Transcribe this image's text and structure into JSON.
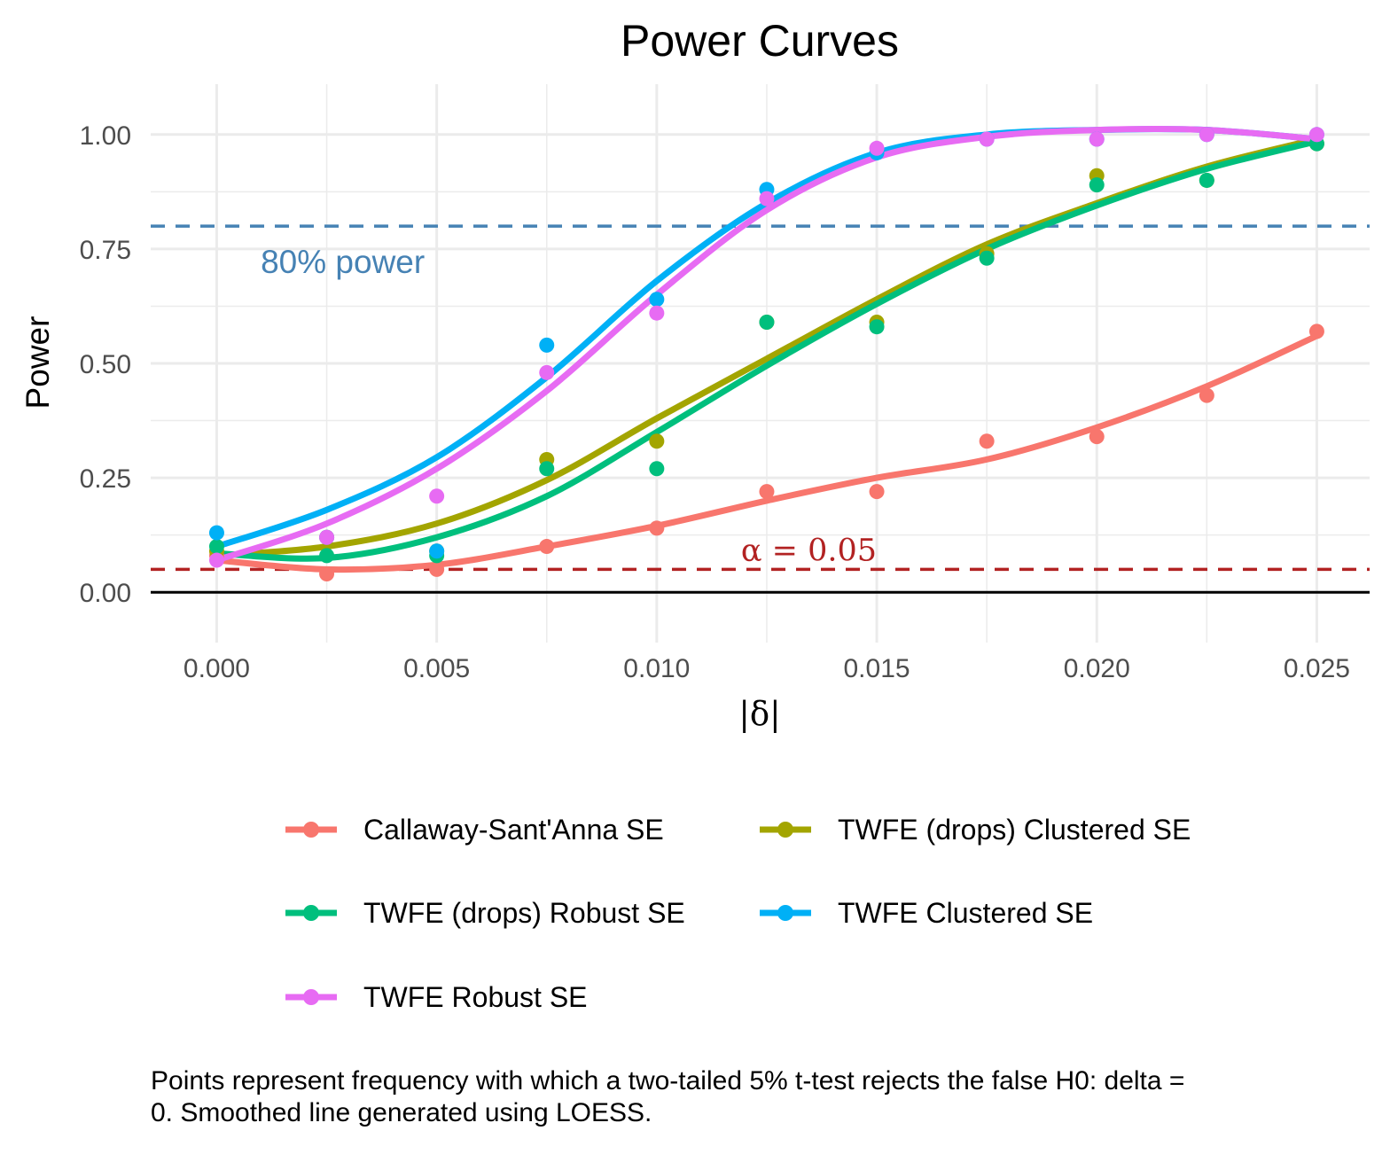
{
  "chart_data": {
    "type": "line",
    "title": "Power Curves",
    "xlabel": "|δ|",
    "ylabel": "Power",
    "xlim": [
      -0.0015,
      0.0262
    ],
    "ylim": [
      -0.11,
      1.11
    ],
    "x_ticks": [
      0.0,
      0.005,
      0.01,
      0.015,
      0.02,
      0.025
    ],
    "x_tick_labels": [
      "0.000",
      "0.005",
      "0.010",
      "0.015",
      "0.020",
      "0.025"
    ],
    "y_ticks": [
      0.0,
      0.25,
      0.5,
      0.75,
      1.0
    ],
    "y_tick_labels": [
      "0.00",
      "0.25",
      "0.50",
      "0.75",
      "1.00"
    ],
    "grid": true,
    "legend_position": "bottom",
    "x": [
      0,
      0.0025,
      0.005,
      0.0075,
      0.01,
      0.0125,
      0.015,
      0.0175,
      0.02,
      0.0225,
      0.025
    ],
    "series": [
      {
        "name": "Callaway-Sant'Anna SE",
        "color": "#F8766D",
        "points": [
          0.08,
          0.04,
          0.05,
          0.1,
          0.14,
          0.22,
          0.22,
          0.33,
          0.34,
          0.43,
          0.57
        ],
        "smooth": [
          0.07,
          0.05,
          0.06,
          0.1,
          0.145,
          0.2,
          0.25,
          0.29,
          0.36,
          0.45,
          0.56
        ]
      },
      {
        "name": "TWFE (drops) Clustered SE",
        "color": "#A3A500",
        "points": [
          0.09,
          0.12,
          0.09,
          0.29,
          0.33,
          0.59,
          0.59,
          0.74,
          0.91,
          0.9,
          0.98
        ],
        "smooth": [
          0.08,
          0.1,
          0.15,
          0.245,
          0.38,
          0.51,
          0.64,
          0.76,
          0.85,
          0.93,
          0.99
        ]
      },
      {
        "name": "TWFE (drops) Robust SE",
        "color": "#00BF7D",
        "points": [
          0.1,
          0.08,
          0.08,
          0.27,
          0.27,
          0.59,
          0.58,
          0.73,
          0.89,
          0.9,
          0.98
        ],
        "smooth": [
          0.085,
          0.075,
          0.12,
          0.21,
          0.35,
          0.495,
          0.63,
          0.75,
          0.845,
          0.925,
          0.985
        ]
      },
      {
        "name": "TWFE Clustered SE",
        "color": "#00B0F6",
        "points": [
          0.13,
          0.12,
          0.09,
          0.54,
          0.64,
          0.88,
          0.96,
          0.99,
          0.99,
          1.0,
          1.0
        ],
        "smooth": [
          0.1,
          0.18,
          0.295,
          0.47,
          0.68,
          0.85,
          0.96,
          1.0,
          1.01,
          1.01,
          0.99
        ]
      },
      {
        "name": "TWFE Robust SE",
        "color": "#E76BF3",
        "points": [
          0.07,
          0.12,
          0.21,
          0.48,
          0.61,
          0.86,
          0.97,
          0.99,
          0.99,
          1.0,
          1.0
        ],
        "smooth": [
          0.07,
          0.15,
          0.27,
          0.44,
          0.65,
          0.835,
          0.95,
          0.995,
          1.01,
          1.01,
          0.99
        ]
      }
    ],
    "reference_lines": [
      {
        "y": 0.8,
        "color": "#4682B4",
        "style": "dashed",
        "label": "80% power"
      },
      {
        "y": 0.05,
        "color": "#B22222",
        "style": "dashed",
        "label": "α = 0.05"
      },
      {
        "y": 0.0,
        "color": "#000000",
        "style": "solid"
      }
    ],
    "caption_lines": [
      "Points represent frequency with which a two-tailed 5% t-test rejects the false H0: delta =",
      "0. Smoothed line generated using LOESS."
    ]
  }
}
